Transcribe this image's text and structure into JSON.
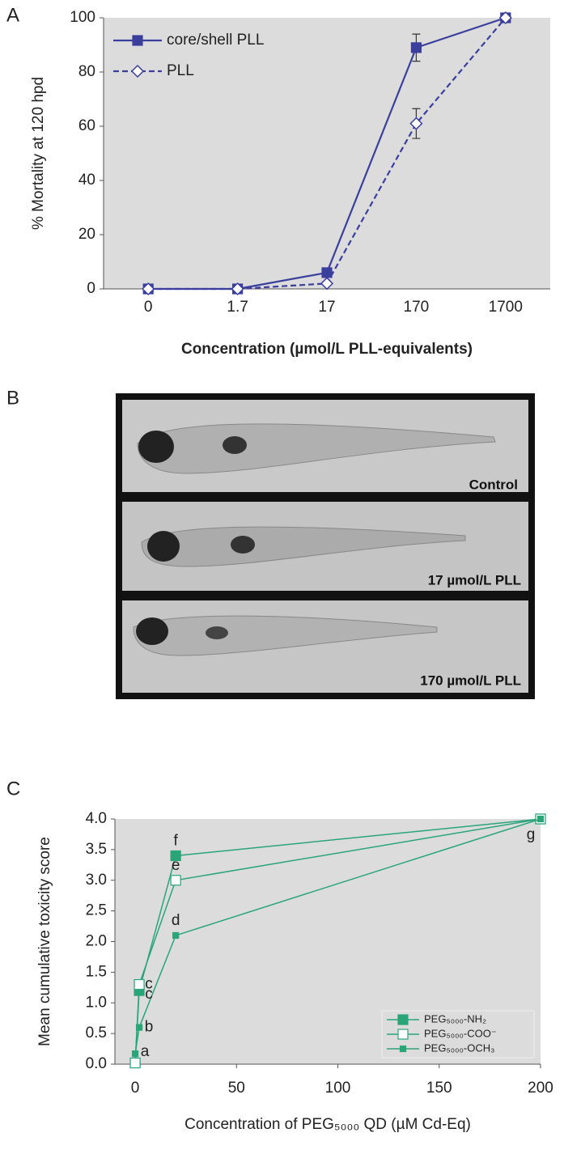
{
  "panel_labels": [
    "A",
    "B",
    "C"
  ],
  "images": [
    {
      "caption": "Control"
    },
    {
      "caption": "17 µmol/L PLL"
    },
    {
      "caption": "170 µmol/L PLL"
    }
  ],
  "chart_data": [
    {
      "type": "line",
      "categories": [
        "0",
        "1.7",
        "17",
        "170",
        "1700"
      ],
      "x_label": "Concentration (µmol/L PLL-equivalents)",
      "y_label": "% Mortality at 120 hpd",
      "ylim": [
        0,
        100
      ],
      "yticks": [
        0,
        20,
        40,
        60,
        80,
        100
      ],
      "legend": "upper left",
      "series": [
        {
          "name": "core/shell PLL",
          "color": "#3b3f9c",
          "marker": "filled-square",
          "dashed": false,
          "values": [
            0,
            0,
            6,
            89,
            100
          ],
          "errors": [
            null,
            null,
            null,
            5,
            null
          ]
        },
        {
          "name": "PLL",
          "color": "#3b3f9c",
          "marker": "open-diamond",
          "dashed": true,
          "values": [
            0,
            0,
            2,
            61,
            100
          ],
          "errors": [
            null,
            null,
            null,
            5.5,
            null
          ]
        }
      ]
    },
    {
      "type": "line",
      "x_label": "Concentration of PEG₅₀₀₀ QD (µM Cd-Eq)",
      "y_label": "Mean cumulative toxicity score",
      "xlim": [
        -10,
        200
      ],
      "xticks": [
        0,
        50,
        100,
        150,
        200
      ],
      "ylim": [
        0,
        4
      ],
      "yticks": [
        {
          "value": 0,
          "label": "0.0"
        },
        {
          "value": 0.5,
          "label": "0.5"
        },
        {
          "value": 1,
          "label": "1.0"
        },
        {
          "value": 1.5,
          "label": "1.5"
        },
        {
          "value": 2,
          "label": "2.0"
        },
        {
          "value": 2.5,
          "label": "2.5"
        },
        {
          "value": 3,
          "label": "3.0"
        },
        {
          "value": 3.5,
          "label": "3.5"
        },
        {
          "value": 4,
          "label": "4.0"
        }
      ],
      "legend": "lower right",
      "x": [
        0,
        2,
        20,
        200
      ],
      "series": [
        {
          "name": "PEG₅₀₀₀-NH₂",
          "color": "#2aa57a",
          "marker": "filled-square",
          "values": [
            0.02,
            1.2,
            3.4,
            4.0
          ]
        },
        {
          "name": "PEG₅₀₀₀-COO⁻",
          "color": "#2aa57a",
          "marker": "open-square",
          "values": [
            0.02,
            1.3,
            3.0,
            4.0
          ]
        },
        {
          "name": "PEG₅₀₀₀-OCH₃",
          "color": "#2aa57a",
          "marker": "small-square",
          "values": [
            0.17,
            0.6,
            2.1,
            4.0
          ]
        }
      ],
      "annotations": [
        "a",
        "b",
        "c",
        "c",
        "d",
        "e",
        "f",
        "g"
      ]
    }
  ]
}
